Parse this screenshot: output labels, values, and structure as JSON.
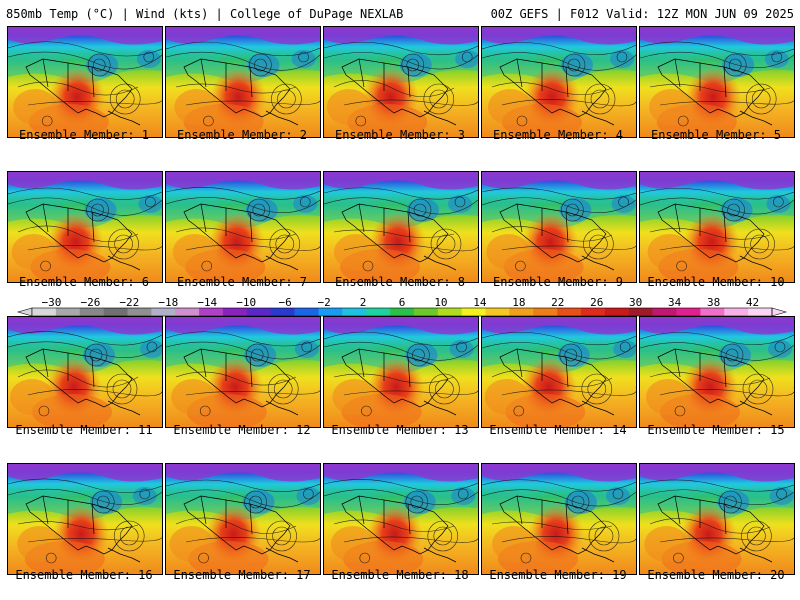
{
  "header": {
    "left": "850mb Temp (°C) | Wind (kts) | College of DuPage NEXLAB",
    "right": "00Z GEFS | F012 Valid: 12Z MON JUN 09 2025"
  },
  "caption_prefix": "Ensemble Member:",
  "members": [
    1,
    2,
    3,
    4,
    5,
    6,
    7,
    8,
    9,
    10,
    11,
    12,
    13,
    14,
    15,
    16,
    17,
    18,
    19,
    20
  ],
  "colorbar": {
    "ticks": [
      "-30",
      "-26",
      "-22",
      "-18",
      "-14",
      "-10",
      "-6",
      "-2",
      "2",
      "6",
      "10",
      "14",
      "18",
      "22",
      "26",
      "30",
      "34",
      "38",
      "42"
    ],
    "colors": [
      "#d8d8d8",
      "#a8a8a8",
      "#888888",
      "#707070",
      "#909090",
      "#b0b0c8",
      "#d090d0",
      "#b040c8",
      "#8a22c0",
      "#5a28c8",
      "#2a3ad0",
      "#1a66e6",
      "#1a9af0",
      "#20c0e0",
      "#1fd0a0",
      "#2ac04a",
      "#6cc82a",
      "#b0dc20",
      "#f2f21e",
      "#f5c823",
      "#f2a01c",
      "#ee7e1a",
      "#e8501a",
      "#e02a1e",
      "#c81a1a",
      "#a01a2a",
      "#c01870",
      "#e02090",
      "#f070c8",
      "#f8b0e8",
      "#fbd6f2"
    ],
    "min": -32,
    "max": 44
  }
}
